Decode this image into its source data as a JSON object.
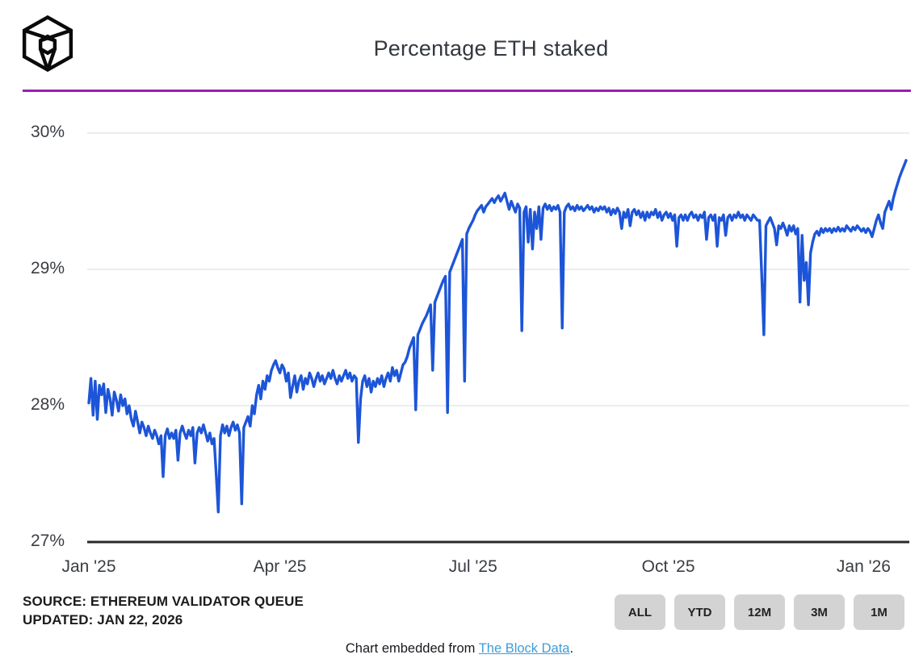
{
  "colors": {
    "accent_purple": "#9c1cb5",
    "line_blue": "#1d55d8",
    "grid_gray": "#e7e7e7",
    "axis_dark": "#28292b",
    "link_blue": "#3e9cd9",
    "button_gray": "#d3d3d3"
  },
  "header": {
    "title": "Percentage ETH staked",
    "logo_icon": "the-block-cube-logo"
  },
  "source": {
    "line1": "SOURCE: ETHEREUM VALIDATOR QUEUE",
    "line2": "UPDATED: JAN 22, 2026"
  },
  "controls": {
    "range_buttons": [
      "ALL",
      "YTD",
      "12M",
      "3M",
      "1M"
    ]
  },
  "footer": {
    "prefix": "Chart embedded from ",
    "link_label": "The Block Data",
    "suffix": "."
  },
  "chart_data": {
    "type": "line",
    "title": "Percentage ETH staked",
    "xlabel": "",
    "ylabel": "",
    "grid": true,
    "legend": "none",
    "ylim": [
      27,
      30.2
    ],
    "x_range_days": [
      0,
      385
    ],
    "y_ticks": [
      {
        "value": 30,
        "label": "30%"
      },
      {
        "value": 29,
        "label": "29%"
      },
      {
        "value": 28,
        "label": "28%"
      },
      {
        "value": 27,
        "label": "27%"
      }
    ],
    "x_ticks": [
      {
        "day": 0,
        "label": "Jan '25"
      },
      {
        "day": 90,
        "label": "Apr '25"
      },
      {
        "day": 181,
        "label": "Jul '25"
      },
      {
        "day": 273,
        "label": "Oct '25"
      },
      {
        "day": 365,
        "label": "Jan '26"
      }
    ],
    "series": [
      {
        "name": "Percentage ETH staked",
        "start_day": 0,
        "step_days": 1,
        "values": [
          28.02,
          28.2,
          27.93,
          28.18,
          27.9,
          28.15,
          28.08,
          28.16,
          27.95,
          28.12,
          28.05,
          27.93,
          28.1,
          28.04,
          27.96,
          28.08,
          28.0,
          28.05,
          27.94,
          28.0,
          27.9,
          27.85,
          27.96,
          27.88,
          27.8,
          27.88,
          27.84,
          27.78,
          27.85,
          27.8,
          27.76,
          27.82,
          27.78,
          27.72,
          27.78,
          27.48,
          27.78,
          27.83,
          27.76,
          27.8,
          27.76,
          27.82,
          27.6,
          27.8,
          27.85,
          27.8,
          27.76,
          27.82,
          27.78,
          27.84,
          27.58,
          27.8,
          27.84,
          27.8,
          27.86,
          27.8,
          27.74,
          27.8,
          27.72,
          27.76,
          27.5,
          27.22,
          27.78,
          27.86,
          27.8,
          27.85,
          27.78,
          27.84,
          27.88,
          27.82,
          27.86,
          27.8,
          27.28,
          27.84,
          27.88,
          27.92,
          27.85,
          28.0,
          27.94,
          28.08,
          28.15,
          28.05,
          28.18,
          28.12,
          28.22,
          28.18,
          28.26,
          28.3,
          28.33,
          28.28,
          28.24,
          28.3,
          28.27,
          28.18,
          28.24,
          28.06,
          28.14,
          28.22,
          28.1,
          28.18,
          28.22,
          28.12,
          28.2,
          28.16,
          28.24,
          28.2,
          28.14,
          28.2,
          28.24,
          28.18,
          28.22,
          28.16,
          28.2,
          28.24,
          28.2,
          28.26,
          28.2,
          28.16,
          28.22,
          28.18,
          28.22,
          28.26,
          28.2,
          28.24,
          28.18,
          28.22,
          28.2,
          27.73,
          28.05,
          28.18,
          28.22,
          28.14,
          28.2,
          28.1,
          28.18,
          28.14,
          28.2,
          28.16,
          28.22,
          28.14,
          28.2,
          28.24,
          28.18,
          28.28,
          28.22,
          28.26,
          28.18,
          28.24,
          28.3,
          28.32,
          28.36,
          28.42,
          28.46,
          28.5,
          27.97,
          28.52,
          28.56,
          28.6,
          28.63,
          28.66,
          28.7,
          28.74,
          28.26,
          28.76,
          28.8,
          28.84,
          28.88,
          28.92,
          28.95,
          27.95,
          28.98,
          29.02,
          29.06,
          29.1,
          29.14,
          29.18,
          29.22,
          28.18,
          29.26,
          29.3,
          29.33,
          29.36,
          29.4,
          29.43,
          29.45,
          29.47,
          29.42,
          29.46,
          29.48,
          29.5,
          29.52,
          29.49,
          29.52,
          29.54,
          29.5,
          29.53,
          29.56,
          29.5,
          29.44,
          29.5,
          29.46,
          29.42,
          29.48,
          29.45,
          28.55,
          29.42,
          29.46,
          29.2,
          29.44,
          29.15,
          29.42,
          29.3,
          29.46,
          29.22,
          29.45,
          29.48,
          29.44,
          29.47,
          29.43,
          29.46,
          29.44,
          29.47,
          29.42,
          28.57,
          29.42,
          29.46,
          29.48,
          29.44,
          29.46,
          29.43,
          29.47,
          29.44,
          29.46,
          29.43,
          29.45,
          29.47,
          29.44,
          29.46,
          29.42,
          29.45,
          29.43,
          29.46,
          29.44,
          29.46,
          29.42,
          29.45,
          29.4,
          29.44,
          29.41,
          29.45,
          29.42,
          29.3,
          29.42,
          29.38,
          29.44,
          29.32,
          29.42,
          29.44,
          29.4,
          29.43,
          29.38,
          29.42,
          29.36,
          29.42,
          29.38,
          29.42,
          29.4,
          29.44,
          29.38,
          29.42,
          29.36,
          29.4,
          29.42,
          29.38,
          29.41,
          29.36,
          29.4,
          29.17,
          29.38,
          29.4,
          29.36,
          29.4,
          29.36,
          29.4,
          29.42,
          29.38,
          29.4,
          29.36,
          29.4,
          29.38,
          29.42,
          29.22,
          29.38,
          29.4,
          29.36,
          29.4,
          29.17,
          29.38,
          29.36,
          29.4,
          29.25,
          29.38,
          29.4,
          29.36,
          29.4,
          29.38,
          29.42,
          29.38,
          29.4,
          29.36,
          29.4,
          29.38,
          29.36,
          29.4,
          29.38,
          29.36,
          29.36,
          28.95,
          28.52,
          29.32,
          29.35,
          29.38,
          29.34,
          29.3,
          29.18,
          29.32,
          29.3,
          29.34,
          29.3,
          29.25,
          29.32,
          29.28,
          29.32,
          29.26,
          29.3,
          28.76,
          29.25,
          28.92,
          29.05,
          28.74,
          29.12,
          29.2,
          29.26,
          29.28,
          29.25,
          29.3,
          29.27,
          29.3,
          29.28,
          29.3,
          29.27,
          29.3,
          29.28,
          29.31,
          29.28,
          29.3,
          29.28,
          29.32,
          29.3,
          29.28,
          29.31,
          29.29,
          29.32,
          29.3,
          29.28,
          29.3,
          29.27,
          29.3,
          29.28,
          29.24,
          29.3,
          29.36,
          29.4,
          29.34,
          29.3,
          29.42,
          29.46,
          29.5,
          29.44,
          29.52,
          29.58,
          29.63,
          29.68,
          29.72,
          29.76,
          29.8
        ]
      }
    ]
  }
}
